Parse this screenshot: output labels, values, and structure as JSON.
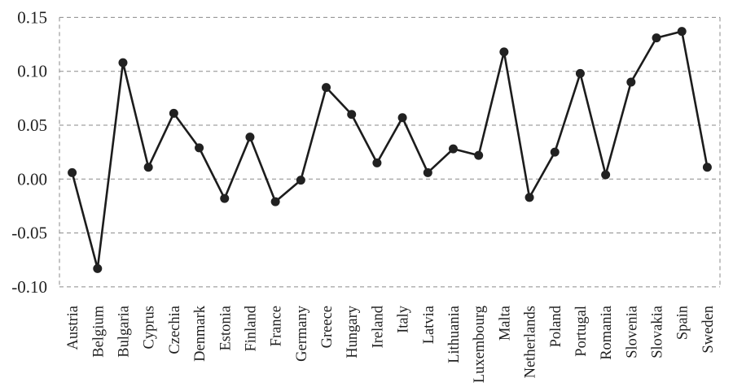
{
  "chart_data": {
    "type": "line",
    "title": "",
    "xlabel": "",
    "ylabel": "",
    "categories": [
      "Austria",
      "Belgium",
      "Bulgaria",
      "Cyprus",
      "Czechia",
      "Denmark",
      "Estonia",
      "Finland",
      "France",
      "Germany",
      "Greece",
      "Hungary",
      "Ireland",
      "Italy",
      "Latvia",
      "Lithuania",
      "Luxembourg",
      "Malta",
      "Netherlands",
      "Poland",
      "Portugal",
      "Romania",
      "Slovenia",
      "Slovakia",
      "Spain",
      "Sweden"
    ],
    "values": [
      0.006,
      -0.083,
      0.108,
      0.011,
      0.061,
      0.029,
      -0.018,
      0.039,
      -0.021,
      -0.001,
      0.085,
      0.06,
      0.015,
      0.057,
      0.006,
      0.028,
      0.022,
      0.118,
      -0.017,
      0.025,
      0.098,
      0.004,
      0.09,
      0.131,
      0.137,
      0.011
    ],
    "ylim": [
      -0.1,
      0.15
    ],
    "yticks": [
      0.15,
      0.1,
      0.05,
      0.0,
      -0.05,
      -0.1
    ],
    "ytick_labels": [
      "0.15",
      "0.10",
      "0.05",
      "0.00",
      "-0.05",
      "-0.10"
    ],
    "grid": "dashed horizontal gridlines at each y tick; dashed left and right plot borders; no vertical interior gridlines",
    "legend_position": "none",
    "marker": "filled-circle",
    "x_label_rotation_deg": 90,
    "colors": {
      "line": "#1c1c1c",
      "marker": "#212121",
      "grid": "#8a8a8a",
      "text": "#1f1f1f",
      "background": "#ffffff"
    }
  }
}
